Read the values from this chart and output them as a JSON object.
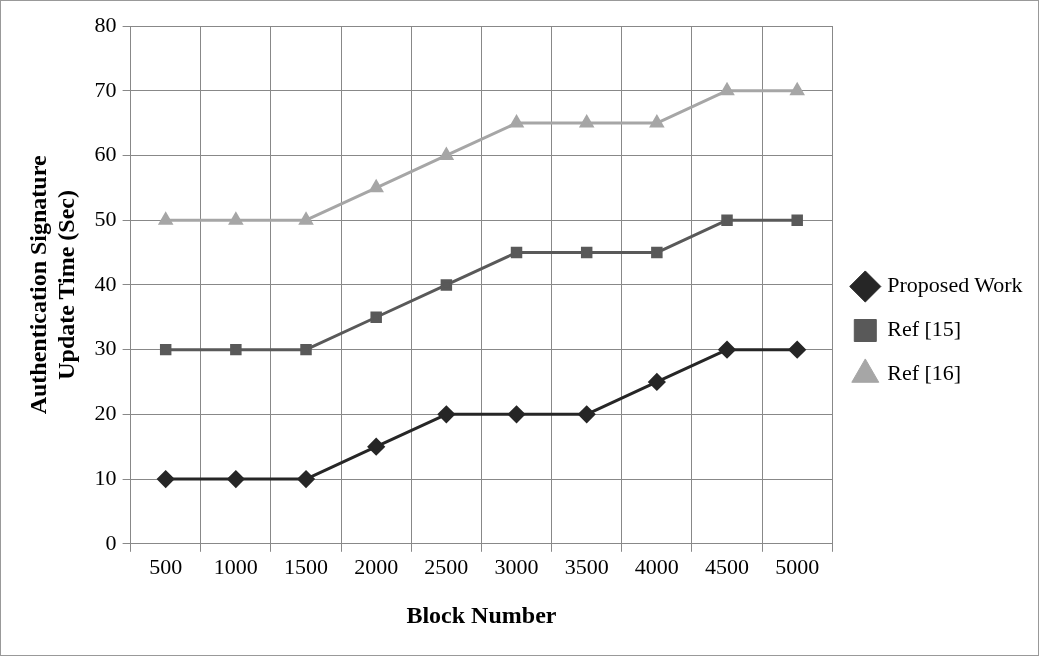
{
  "chart_data": {
    "type": "line",
    "xlabel": "Block Number",
    "ylabel": "Authentication Signature Update Time (Sec)",
    "categories": [
      "500",
      "1000",
      "1500",
      "2000",
      "2500",
      "3000",
      "3500",
      "4000",
      "4500",
      "5000"
    ],
    "series": [
      {
        "name": "Proposed Work",
        "color": "#262626",
        "marker": "diamond",
        "values": [
          10,
          10,
          10,
          15,
          20,
          20,
          20,
          25,
          30,
          30
        ]
      },
      {
        "name": "Ref [15]",
        "color": "#595959",
        "marker": "square",
        "values": [
          30,
          30,
          30,
          35,
          40,
          45,
          45,
          45,
          50,
          50
        ]
      },
      {
        "name": "Ref [16]",
        "color": "#a6a6a6",
        "marker": "triangle",
        "values": [
          50,
          50,
          50,
          55,
          60,
          65,
          65,
          65,
          70,
          70
        ]
      }
    ],
    "ylim": [
      0,
      80
    ],
    "yticks": [
      0,
      10,
      20,
      30,
      40,
      50,
      60,
      70,
      80
    ],
    "grid": true,
    "legend": "right",
    "line_style": "solid"
  }
}
